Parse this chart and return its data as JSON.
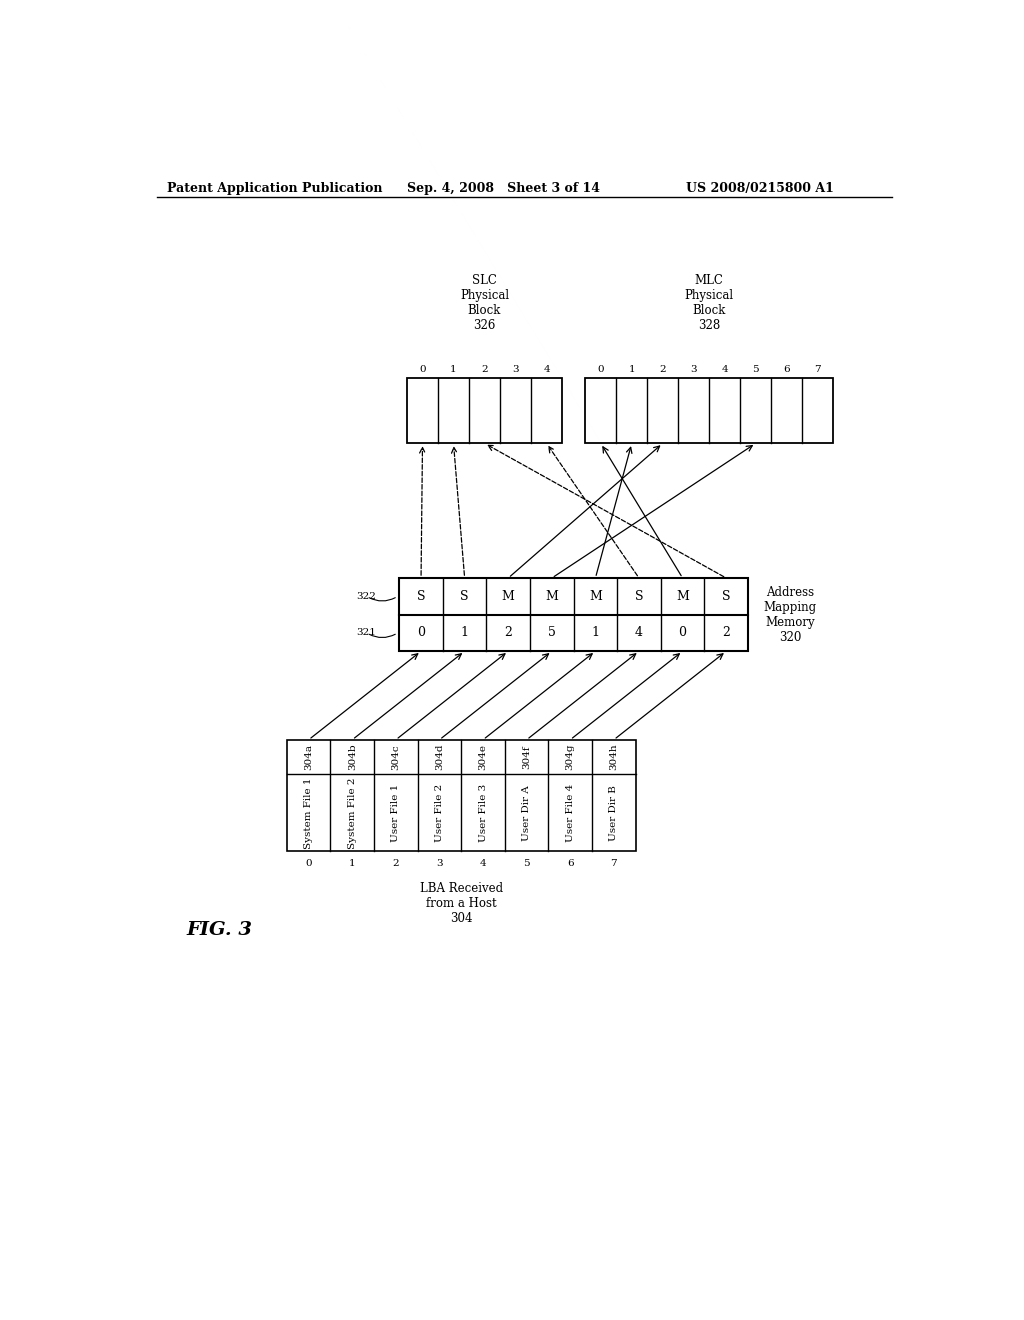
{
  "header_left": "Patent Application Publication",
  "header_mid": "Sep. 4, 2008   Sheet 3 of 14",
  "header_right": "US 2008/0215800 A1",
  "fig_label": "FIG. 3",
  "slc_label": "SLC\nPhysical\nBlock\n326",
  "mlc_label": "MLC\nPhysical\nBlock\n328",
  "slc_cols": 5,
  "mlc_cols": 8,
  "slc_indices": [
    "0",
    "1",
    "2",
    "3",
    "4"
  ],
  "mlc_indices": [
    "0",
    "1",
    "2",
    "3",
    "4",
    "5",
    "6",
    "7"
  ],
  "addr_map_label": "Address\nMapping\nMemory\n320",
  "addr_map_row1_label": "321",
  "addr_map_row2_label": "322",
  "addr_map_values": [
    "0",
    "1",
    "2",
    "5",
    "1",
    "4",
    "0",
    "2"
  ],
  "addr_map_types": [
    "S",
    "S",
    "M",
    "M",
    "M",
    "S",
    "M",
    "S"
  ],
  "lba_label": "LBA Received\nfrom a Host\n304",
  "lba_indices": [
    "0",
    "1",
    "2",
    "3",
    "4",
    "5",
    "6",
    "7"
  ],
  "lba_entries": [
    "System File 1",
    "System File 2",
    "User File 1",
    "User File 2",
    "User File 3",
    "User Dir A",
    "User File 4",
    "User Dir B"
  ],
  "lba_refs": [
    "304a",
    "304b",
    "304c",
    "304d",
    "304e",
    "304f",
    "304g",
    "304h"
  ],
  "bg_color": "#ffffff",
  "text_color": "#000000"
}
